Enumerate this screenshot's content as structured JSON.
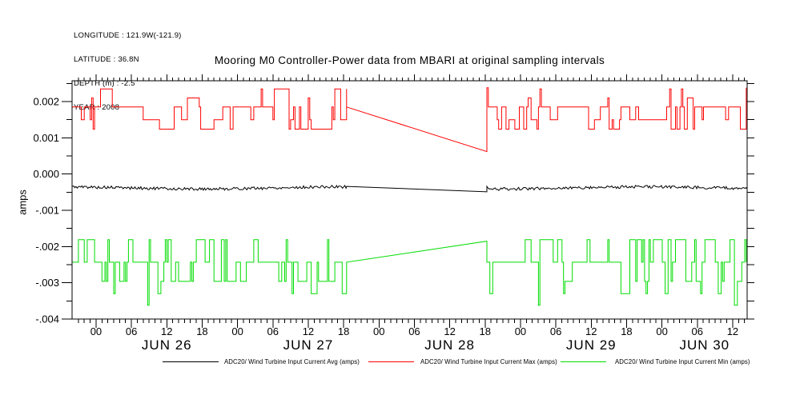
{
  "header": {
    "lines": [
      "LONGITUDE : 121.9W(-121.9)",
      "LATITUDE : 36.8N",
      "DEPTH (m) : -2.5",
      "YEAR : 2008"
    ]
  },
  "title": "Mooring M0 Controller-Power data from MBARI at original sampling intervals",
  "legend": {
    "items": [
      {
        "label": "ADC20/ Wind Turbine Input Current Avg (amps)",
        "color": "#000000"
      },
      {
        "label": "ADC20/ Wind Turbine Input Current Max (amps)",
        "color": "#ff0000"
      },
      {
        "label": "ADC20/ Wind Turbine Input Current Min (amps)",
        "color": "#00dd00"
      }
    ]
  },
  "chart_data": {
    "type": "line",
    "title": "Mooring M0 Controller-Power data from MBARI at original sampling intervals",
    "xlabel": "",
    "ylabel": "amps",
    "ylim": [
      -0.004,
      0.0026
    ],
    "grid": "off",
    "legend_position": "bottom",
    "x_time_span": {
      "start": "2008 JUN 25 20:00",
      "end": "2008 JUN 30 14:30",
      "t_total_hours": 114.4
    },
    "y_axis": {
      "major_ticks": [
        {
          "value": 0.002,
          "label": "0.002"
        },
        {
          "value": 0.001,
          "label": "0.001"
        },
        {
          "value": 0.0,
          "label": "0.000"
        },
        {
          "value": -0.001,
          "label": "-.001"
        },
        {
          "value": -0.002,
          "label": "-.002"
        },
        {
          "value": -0.003,
          "label": "-.003"
        },
        {
          "value": -0.004,
          "label": "-.004"
        }
      ],
      "minor_tick_values": [
        0.0025,
        0.0015,
        0.0005,
        -0.0005,
        -0.0015,
        -0.0025,
        -0.0035
      ]
    },
    "x_axis": {
      "days": [
        {
          "label": "JUN 26",
          "t0": 4
        },
        {
          "label": "JUN 27",
          "t0": 28
        },
        {
          "label": "JUN 28",
          "t0": 52
        },
        {
          "label": "JUN 29",
          "t0": 76
        },
        {
          "label": "JUN 30",
          "t0": 100
        }
      ],
      "labeled_hours": [
        {
          "label": "00",
          "offset": 0
        },
        {
          "label": "06",
          "offset": 6
        },
        {
          "label": "12",
          "offset": 12
        },
        {
          "label": "18",
          "offset": 18
        }
      ],
      "minor_tick_every_hours": 1
    },
    "gap": {
      "t_start_hours": 46.5,
      "t_end_hours": 70.3,
      "description": "data gap from JUN 27 ~18:30 to JUN 28 ~18:20; adjacent samples joined by straight lines"
    },
    "series": [
      {
        "name": "ADC20/ Wind Turbine Input Current Avg (amps)",
        "data_name": "series-avg-line",
        "color": "#000000",
        "kind": "noise",
        "base": -0.00038,
        "noise_amp": 4e-05,
        "wave_amp": 3e-05,
        "wave_period": 8,
        "wave_phase": 2,
        "step_hours": 0.2,
        "seed": 5,
        "gap_start_value": -0.00034,
        "gap_end_value": -0.00049,
        "resume_value": -0.00034,
        "end_value": -0.0004
      },
      {
        "name": "ADC20/ Wind Turbine Input Current Max (amps)",
        "data_name": "series-max-line",
        "color": "#ff0000",
        "kind": "telegraph",
        "levels": [
          {
            "value": 0.00185,
            "weight": 0.48
          },
          {
            "value": 0.0015,
            "weight": 0.2
          },
          {
            "value": 0.00124,
            "weight": 0.2
          },
          {
            "value": 0.00235,
            "weight": 0.07
          },
          {
            "value": 0.0021,
            "weight": 0.05
          }
        ],
        "switch_prob": 0.4,
        "step_hours": 0.25,
        "seed": 7,
        "gap_start_value": 0.00185,
        "gap_end_value": 0.00062,
        "resume_value": 0.00238,
        "end_value": 0.00238
      },
      {
        "name": "ADC20/ Wind Turbine Input Current Min (amps)",
        "data_name": "series-min-line",
        "color": "#00dd00",
        "kind": "telegraph",
        "levels": [
          {
            "value": -0.00243,
            "weight": 0.48
          },
          {
            "value": -0.00181,
            "weight": 0.22
          },
          {
            "value": -0.00296,
            "weight": 0.22
          },
          {
            "value": -0.0033,
            "weight": 0.06
          },
          {
            "value": -0.00362,
            "weight": 0.02
          }
        ],
        "switch_prob": 0.4,
        "step_hours": 0.25,
        "seed": 13,
        "gap_start_value": -0.00243,
        "gap_end_value": -0.00185,
        "resume_value": -0.00243,
        "end_value": -0.00243,
        "forced_points": [
          [
            12.8,
            -0.00362
          ],
          [
            37.3,
            -0.0033
          ]
        ]
      }
    ]
  }
}
